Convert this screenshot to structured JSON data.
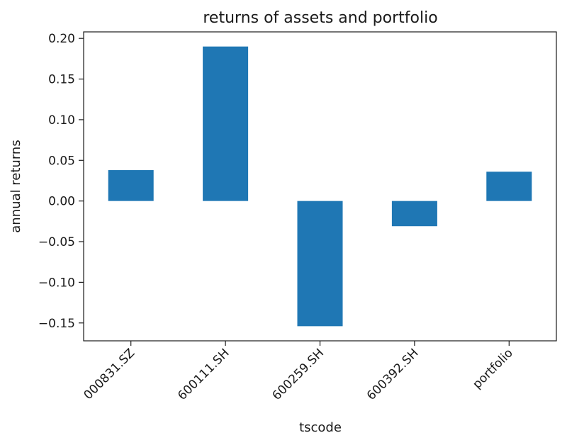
{
  "chart_data": {
    "type": "bar",
    "title": "returns of assets and portfolio",
    "xlabel": "tscode",
    "ylabel": "annual returns",
    "categories": [
      "000831.SZ",
      "600111.SH",
      "600259.SH",
      "600392.SH",
      "portfolio"
    ],
    "values": [
      0.038,
      0.19,
      -0.154,
      -0.031,
      0.036
    ],
    "ylim": [
      -0.172,
      0.208
    ],
    "yticks": [
      0.2,
      0.15,
      0.1,
      0.05,
      0.0,
      -0.05,
      -0.1,
      -0.15
    ],
    "ytick_labels": [
      "0.20",
      "0.15",
      "0.10",
      "0.05",
      "0.00",
      "−0.05",
      "−0.10",
      "−0.15"
    ],
    "bar_color": "#1f77b4",
    "grid": false,
    "legend": "none"
  }
}
